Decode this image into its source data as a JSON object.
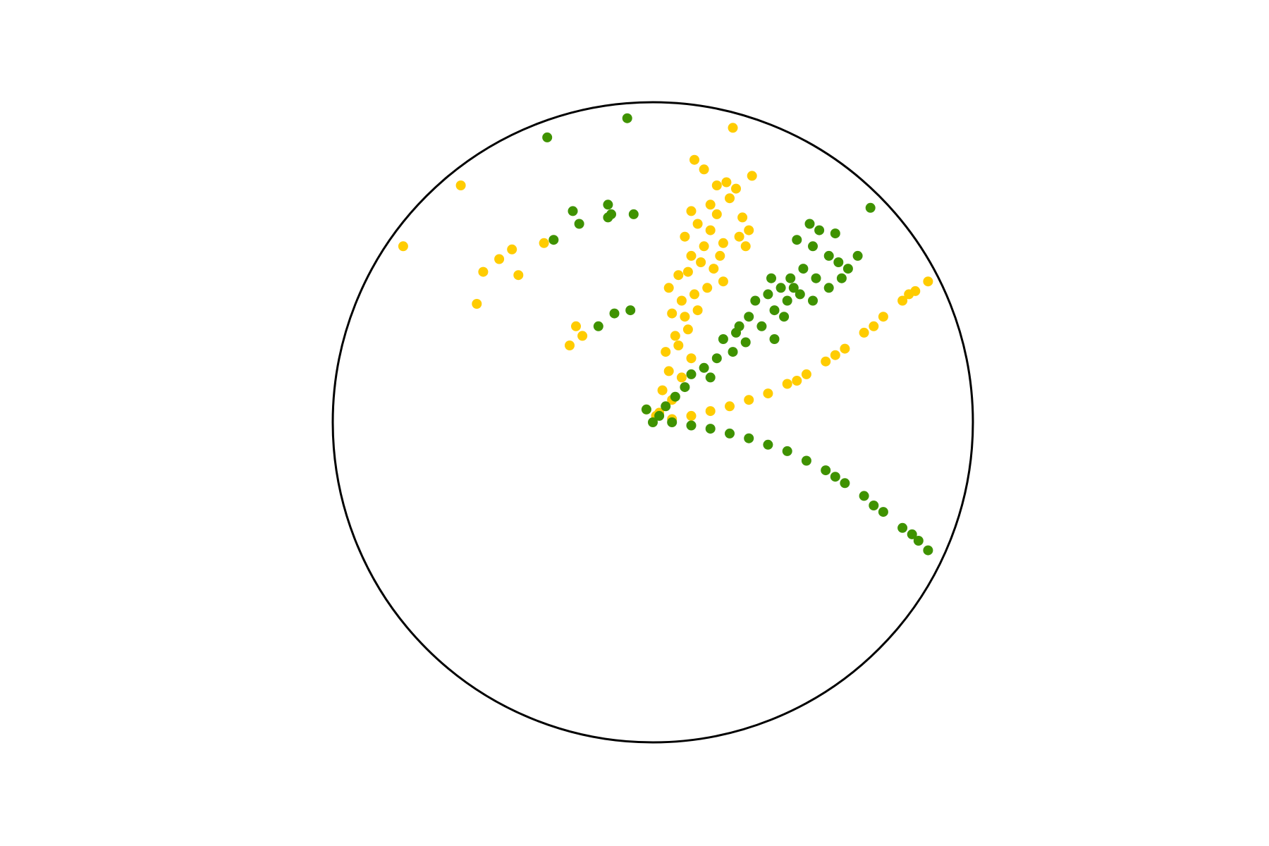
{
  "chart_data": {
    "type": "scatter",
    "coordinate_system": "poincare-disk",
    "title": "",
    "xlabel": "",
    "ylabel": "",
    "xlim": [
      -1,
      1
    ],
    "ylim": [
      -1,
      1
    ],
    "grid": false,
    "legend": "none",
    "boundary": {
      "shape": "unit-circle",
      "color": "#000000"
    },
    "series": [
      {
        "color": "#ffcc00",
        "points": [
          [
            -0.78,
            0.55
          ],
          [
            -0.6,
            0.74
          ],
          [
            -0.44,
            0.54
          ],
          [
            -0.53,
            0.47
          ],
          [
            -0.48,
            0.51
          ],
          [
            -0.55,
            0.37
          ],
          [
            -0.42,
            0.46
          ],
          [
            -0.34,
            0.56
          ],
          [
            -0.24,
            0.3
          ],
          [
            -0.22,
            0.27
          ],
          [
            -0.26,
            0.24
          ],
          [
            0.25,
            0.92
          ],
          [
            0.13,
            0.82
          ],
          [
            0.16,
            0.79
          ],
          [
            0.2,
            0.74
          ],
          [
            0.23,
            0.75
          ],
          [
            0.26,
            0.73
          ],
          [
            0.31,
            0.77
          ],
          [
            0.24,
            0.7
          ],
          [
            0.18,
            0.68
          ],
          [
            0.12,
            0.66
          ],
          [
            0.1,
            0.58
          ],
          [
            0.14,
            0.62
          ],
          [
            0.18,
            0.6
          ],
          [
            0.22,
            0.56
          ],
          [
            0.27,
            0.58
          ],
          [
            0.29,
            0.55
          ],
          [
            0.16,
            0.55
          ],
          [
            0.12,
            0.52
          ],
          [
            0.08,
            0.46
          ],
          [
            0.05,
            0.42
          ],
          [
            0.11,
            0.47
          ],
          [
            0.15,
            0.5
          ],
          [
            0.19,
            0.48
          ],
          [
            0.22,
            0.44
          ],
          [
            0.09,
            0.38
          ],
          [
            0.13,
            0.4
          ],
          [
            0.17,
            0.42
          ],
          [
            0.06,
            0.34
          ],
          [
            0.1,
            0.33
          ],
          [
            0.14,
            0.35
          ],
          [
            0.07,
            0.27
          ],
          [
            0.11,
            0.29
          ],
          [
            0.04,
            0.22
          ],
          [
            0.08,
            0.24
          ],
          [
            0.12,
            0.2
          ],
          [
            0.05,
            0.16
          ],
          [
            0.09,
            0.14
          ],
          [
            0.03,
            0.1
          ],
          [
            0.06,
            0.07
          ],
          [
            0.02,
            0.03
          ],
          [
            0.01,
            0.02
          ],
          [
            -0.02,
            0.04
          ],
          [
            0.2,
            0.65
          ],
          [
            0.28,
            0.64
          ],
          [
            0.3,
            0.6
          ],
          [
            0.21,
            0.52
          ],
          [
            0.06,
            0.01
          ],
          [
            0.12,
            0.02
          ],
          [
            0.18,
            0.035
          ],
          [
            0.24,
            0.05
          ],
          [
            0.3,
            0.07
          ],
          [
            0.36,
            0.09
          ],
          [
            0.42,
            0.12
          ],
          [
            0.48,
            0.15
          ],
          [
            0.54,
            0.19
          ],
          [
            0.6,
            0.23
          ],
          [
            0.66,
            0.28
          ],
          [
            0.72,
            0.33
          ],
          [
            0.78,
            0.38
          ],
          [
            0.82,
            0.41
          ],
          [
            0.86,
            0.44
          ],
          [
            0.45,
            0.13
          ],
          [
            0.57,
            0.21
          ],
          [
            0.69,
            0.3
          ],
          [
            0.8,
            0.4
          ]
        ]
      },
      {
        "color": "#3f9200",
        "points": [
          [
            -0.08,
            0.95
          ],
          [
            -0.33,
            0.89
          ],
          [
            -0.25,
            0.66
          ],
          [
            -0.23,
            0.62
          ],
          [
            -0.14,
            0.68
          ],
          [
            -0.14,
            0.64
          ],
          [
            -0.13,
            0.65
          ],
          [
            -0.06,
            0.65
          ],
          [
            -0.31,
            0.57
          ],
          [
            -0.17,
            0.3
          ],
          [
            -0.12,
            0.34
          ],
          [
            -0.07,
            0.35
          ],
          [
            0.68,
            0.67
          ],
          [
            0.49,
            0.62
          ],
          [
            0.52,
            0.6
          ],
          [
            0.57,
            0.59
          ],
          [
            0.45,
            0.57
          ],
          [
            0.5,
            0.55
          ],
          [
            0.55,
            0.52
          ],
          [
            0.58,
            0.5
          ],
          [
            0.61,
            0.48
          ],
          [
            0.64,
            0.52
          ],
          [
            0.59,
            0.45
          ],
          [
            0.55,
            0.42
          ],
          [
            0.51,
            0.45
          ],
          [
            0.47,
            0.48
          ],
          [
            0.43,
            0.45
          ],
          [
            0.4,
            0.42
          ],
          [
            0.36,
            0.4
          ],
          [
            0.32,
            0.38
          ],
          [
            0.38,
            0.35
          ],
          [
            0.42,
            0.38
          ],
          [
            0.46,
            0.4
          ],
          [
            0.5,
            0.38
          ],
          [
            0.3,
            0.33
          ],
          [
            0.34,
            0.3
          ],
          [
            0.26,
            0.28
          ],
          [
            0.22,
            0.26
          ],
          [
            0.29,
            0.25
          ],
          [
            0.25,
            0.22
          ],
          [
            0.2,
            0.2
          ],
          [
            0.16,
            0.17
          ],
          [
            0.12,
            0.15
          ],
          [
            0.18,
            0.14
          ],
          [
            0.1,
            0.11
          ],
          [
            0.07,
            0.08
          ],
          [
            0.04,
            0.05
          ],
          [
            0.02,
            0.02
          ],
          [
            0.37,
            0.45
          ],
          [
            0.41,
            0.33
          ],
          [
            0.27,
            0.3
          ],
          [
            0.44,
            0.42
          ],
          [
            -0.02,
            0.04
          ],
          [
            0.38,
            0.26
          ],
          [
            0.0,
            0.0
          ],
          [
            0.06,
            0.0
          ],
          [
            0.12,
            -0.01
          ],
          [
            0.18,
            -0.02
          ],
          [
            0.24,
            -0.035
          ],
          [
            0.3,
            -0.05
          ],
          [
            0.36,
            -0.07
          ],
          [
            0.42,
            -0.09
          ],
          [
            0.48,
            -0.12
          ],
          [
            0.54,
            -0.15
          ],
          [
            0.6,
            -0.19
          ],
          [
            0.66,
            -0.23
          ],
          [
            0.72,
            -0.28
          ],
          [
            0.78,
            -0.33
          ],
          [
            0.83,
            -0.37
          ],
          [
            0.86,
            -0.4
          ],
          [
            0.57,
            -0.17
          ],
          [
            0.69,
            -0.26
          ],
          [
            0.81,
            -0.35
          ]
        ]
      }
    ]
  }
}
